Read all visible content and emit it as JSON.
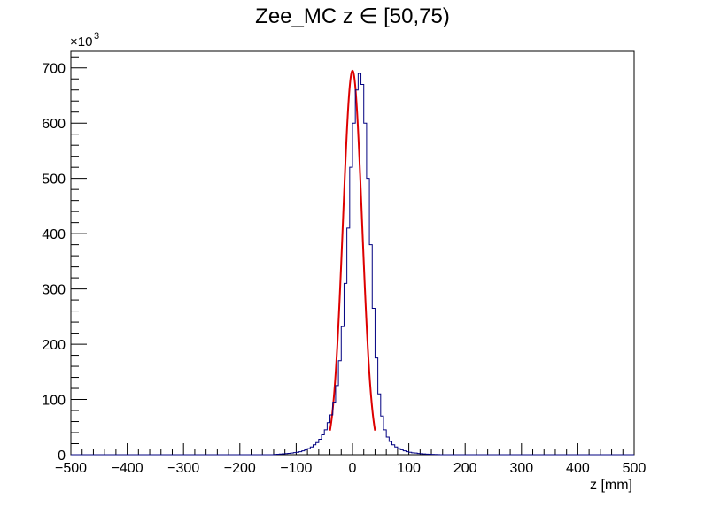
{
  "chart_data": {
    "type": "histogram",
    "title": "Zee_MC z ∈ [50,75)",
    "xlabel": "z [mm]",
    "ylabel": "",
    "y_multiplier_label": "×10",
    "y_multiplier_exponent": "3",
    "xlim": [
      -500,
      500
    ],
    "ylim": [
      0,
      730
    ],
    "x_ticks": [
      "−500",
      "−400",
      "−300",
      "−200",
      "−100",
      "0",
      "100",
      "200",
      "300",
      "400",
      "500"
    ],
    "y_ticks": [
      "0",
      "100",
      "200",
      "300",
      "400",
      "500",
      "600",
      "700"
    ],
    "bin_width": 5,
    "series": [
      {
        "kind": "histogram",
        "color": "#000080",
        "bins": [
          [
            -140,
            0.5
          ],
          [
            -135,
            0.8
          ],
          [
            -130,
            1.2
          ],
          [
            -125,
            1.6
          ],
          [
            -120,
            2.0
          ],
          [
            -115,
            2.5
          ],
          [
            -110,
            3.0
          ],
          [
            -105,
            3.8
          ],
          [
            -100,
            4.5
          ],
          [
            -95,
            5.5
          ],
          [
            -90,
            7.0
          ],
          [
            -85,
            9.0
          ],
          [
            -80,
            11.0
          ],
          [
            -75,
            14.0
          ],
          [
            -70,
            18.0
          ],
          [
            -65,
            22.0
          ],
          [
            -60,
            28.0
          ],
          [
            -55,
            36.0
          ],
          [
            -50,
            45.0
          ],
          [
            -45,
            58.0
          ],
          [
            -40,
            72.0
          ],
          [
            -35,
            95.0
          ],
          [
            -30,
            125.0
          ],
          [
            -25,
            170.0
          ],
          [
            -20,
            232.0
          ],
          [
            -15,
            310.0
          ],
          [
            -10,
            410.0
          ],
          [
            -5,
            520.0
          ],
          [
            0,
            600.0
          ],
          [
            5,
            660.0
          ],
          [
            10,
            690.0
          ],
          [
            15,
            670.0
          ],
          [
            20,
            600.0
          ],
          [
            25,
            500.0
          ],
          [
            30,
            380.0
          ],
          [
            35,
            265.0
          ],
          [
            40,
            175.0
          ],
          [
            45,
            110.0
          ],
          [
            50,
            70.0
          ],
          [
            55,
            45.0
          ],
          [
            60,
            32.0
          ],
          [
            65,
            24.0
          ],
          [
            70,
            18.0
          ],
          [
            75,
            14.0
          ],
          [
            80,
            11.0
          ],
          [
            85,
            9.0
          ],
          [
            90,
            7.0
          ],
          [
            95,
            5.5
          ],
          [
            100,
            4.5
          ],
          [
            105,
            3.5
          ],
          [
            110,
            3.0
          ],
          [
            115,
            2.3
          ],
          [
            120,
            1.8
          ],
          [
            125,
            1.4
          ],
          [
            130,
            1.0
          ],
          [
            135,
            0.8
          ],
          [
            140,
            0.6
          ],
          [
            145,
            0.4
          ],
          [
            150,
            0.3
          ]
        ]
      },
      {
        "kind": "fit",
        "color": "#dd0000",
        "mean": 0,
        "sigma": 17,
        "amplitude": 695,
        "x_range": [
          -40,
          40
        ]
      }
    ]
  }
}
